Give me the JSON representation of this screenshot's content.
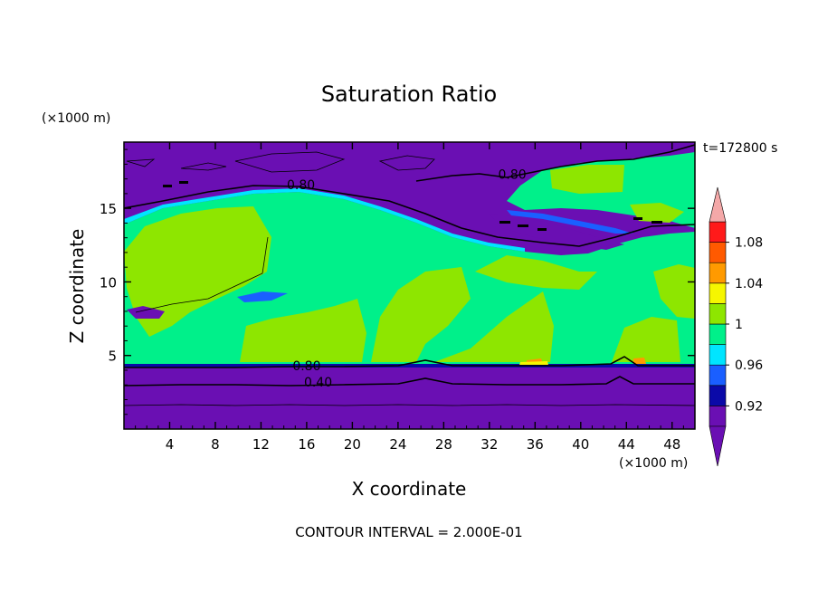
{
  "chart_data": {
    "type": "heatmap",
    "title": "Saturation Ratio",
    "xlabel": "X coordinate",
    "ylabel": "Z coordinate",
    "x_unit_label": "(×1000 m)",
    "y_unit_label": "(×1000 m)",
    "time_label": "t=172800 s",
    "footer": "CONTOUR INTERVAL = 2.000E-01",
    "xlim": [
      0,
      50
    ],
    "ylim": [
      0,
      19.5
    ],
    "x_ticks": [
      4,
      8,
      12,
      16,
      20,
      24,
      28,
      32,
      36,
      40,
      44,
      48
    ],
    "y_ticks": [
      5,
      10,
      15
    ],
    "contour_labels": [
      {
        "text": "0.80",
        "x": 15.5,
        "z": 16.3
      },
      {
        "text": "0.80",
        "x": 34.0,
        "z": 17.0
      },
      {
        "text": "0.80",
        "x": 16.0,
        "z": 4.0
      },
      {
        "text": "0.40",
        "x": 17.0,
        "z": 2.9
      }
    ],
    "colorbar": {
      "levels": [
        0.9,
        0.92,
        0.94,
        0.96,
        0.98,
        1.0,
        1.02,
        1.04,
        1.06,
        1.08,
        1.1
      ],
      "tick_labels": [
        {
          "value": 0.92,
          "text": "0.92"
        },
        {
          "value": 0.96,
          "text": "0.96"
        },
        {
          "value": 1.0,
          "text": "1"
        },
        {
          "value": 1.04,
          "text": "1.04"
        },
        {
          "value": 1.08,
          "text": "1.08"
        }
      ],
      "colors": [
        "#6a0fb3",
        "#0a09a8",
        "#1a5fff",
        "#00e5ff",
        "#00f08a",
        "#8ee600",
        "#f6f600",
        "#ff9a00",
        "#ff5a00",
        "#ff1a1a"
      ],
      "over_color": "#f4a8a8",
      "under_color": "#6a0fb3"
    },
    "regions": [
      {
        "value": "<0.90",
        "color": "#6a0fb3",
        "z_range": [
          0,
          4.3
        ]
      },
      {
        "value": "0.98-1.00",
        "color": "#00f08a",
        "z_range": [
          4.3,
          15
        ]
      },
      {
        "value": "<0.90",
        "color": "#6a0fb3",
        "z_range": [
          15,
          19.5
        ]
      }
    ]
  }
}
